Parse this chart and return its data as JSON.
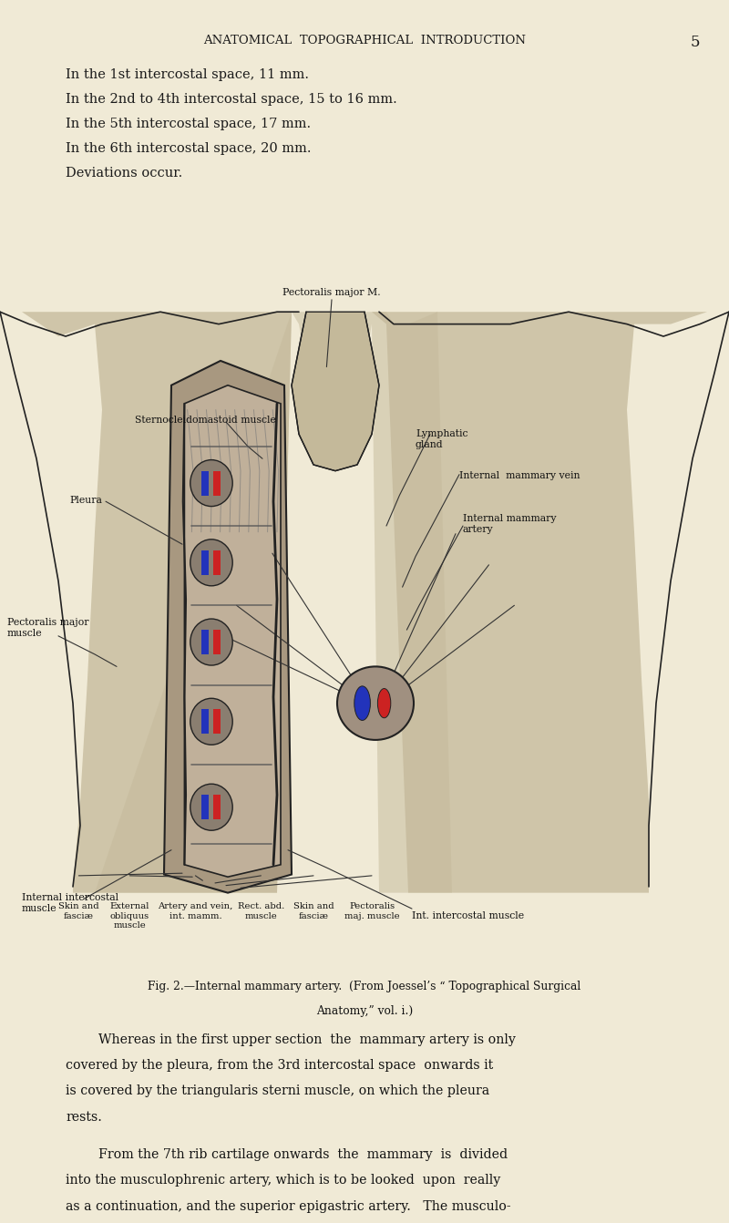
{
  "bg_color": "#f0ead6",
  "page_title": "ANATOMICAL  TOPOGRAPHICAL  INTRODUCTION",
  "page_number": "5",
  "intro_lines": [
    "In the 1st intercostal space, 11 mm.",
    "In the 2nd to 4th intercostal space, 15 to 16 mm.",
    "In the 5th intercostal space, 17 mm.",
    "In the 6th intercostal space, 20 mm.",
    "Deviations occur."
  ],
  "fig_caption_line1": "Fig. 2.—Internal mammary artery.  (From Joessel’s “ Topographical Surgical",
  "fig_caption_line2": "Anatomy,” vol. i.)",
  "body_para1_lines": [
    "Whereas in the first upper section  the  mammary artery is only",
    "covered by the pleura, from the 3rd intercostal space  onwards it",
    "is covered by the triangularis sterni muscle, on which the pleura",
    "rests."
  ],
  "body_para2_lines": [
    "From the 7th rib cartilage onwards  the  mammary  is  divided",
    "into the musculophrenic artery, which is to be looked  upon  really",
    "as a continuation, and the superior epigastric artery.   The musculo-"
  ],
  "bottom_labels": [
    [
      0.108,
      "Skin and\nfasciæ"
    ],
    [
      0.178,
      "External\nobliquus\nmuscle"
    ],
    [
      0.268,
      "Artery and vein,\nint. mamm."
    ],
    [
      0.358,
      "Rect. abd.\nmuscle"
    ],
    [
      0.43,
      "Skin and\nfasciæ"
    ],
    [
      0.51,
      "Pectoralis\nmaj. muscle"
    ]
  ],
  "skin_color": "#c4b99a",
  "dark_color": "#222222",
  "mid_color": "#555555",
  "artery_color": "#cc2222",
  "vein_color": "#2233bb",
  "line_color": "#333333"
}
